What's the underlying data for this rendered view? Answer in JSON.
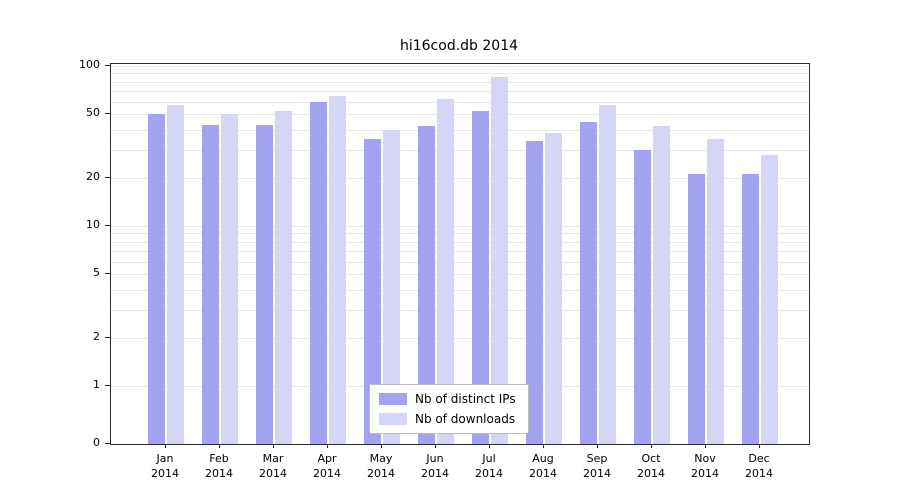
{
  "chart_data": {
    "type": "bar",
    "title": "hi16cod.db 2014",
    "categories": [
      "Jan",
      "Feb",
      "Mar",
      "Apr",
      "May",
      "Jun",
      "Jul",
      "Aug",
      "Sep",
      "Oct",
      "Nov",
      "Dec"
    ],
    "x_tick_second_line": "2014",
    "series": [
      {
        "name": "Nb of distinct IPs",
        "color": "#a2a2ee",
        "values": [
          50,
          43,
          43,
          60,
          35,
          42,
          52,
          34,
          45,
          30,
          21,
          21
        ]
      },
      {
        "name": "Nb of downloads",
        "color": "#d5d5f6",
        "values": [
          57,
          50,
          52,
          65,
          40,
          62,
          85,
          38,
          57,
          42,
          35,
          28
        ]
      }
    ],
    "y_ticks": [
      0,
      1,
      2,
      5,
      10,
      20,
      50,
      100
    ],
    "y_scale": "log-with-zero",
    "ylim": [
      0,
      100
    ],
    "grid": "minor-horizontal",
    "legend_position": "bottom-center",
    "gridline_values": [
      1,
      2,
      3,
      4,
      5,
      6,
      7,
      8,
      9,
      10,
      20,
      30,
      40,
      50,
      60,
      70,
      80,
      90,
      100
    ]
  }
}
